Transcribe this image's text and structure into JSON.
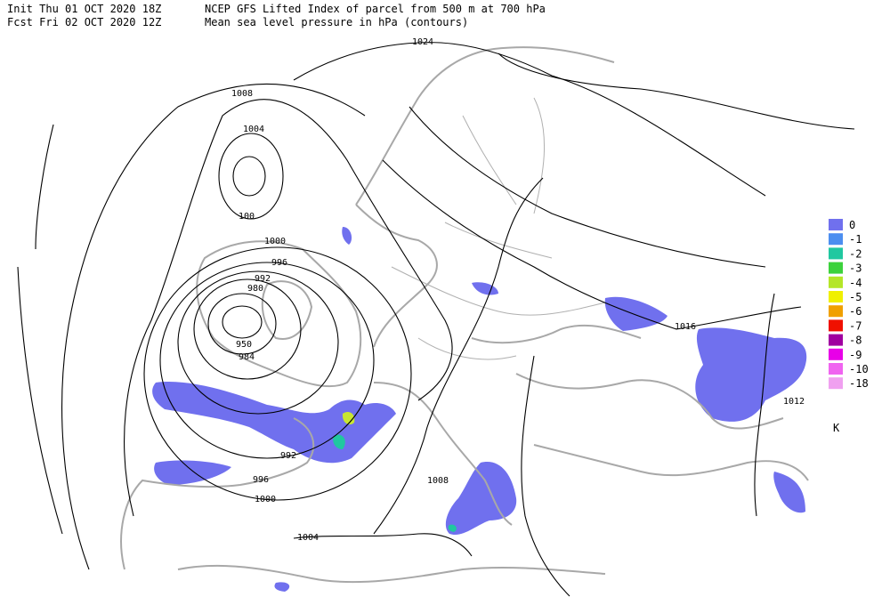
{
  "header": {
    "init": "Init  Thu 01 OCT 2020 18Z",
    "forecast": "Fcst Fri 02 OCT 2020 12Z",
    "field": "NCEP GFS Lifted Index of parcel from 500 m at 700 hPa",
    "contours": "Mean sea level pressure in hPa (contours)"
  },
  "contour_labels": [
    "1024",
    "1008",
    "1004",
    "100",
    "1000",
    "996",
    "992",
    "980",
    "950",
    "984",
    "992",
    "996",
    "1000",
    "1004",
    "1008",
    "1016",
    "1012"
  ],
  "legend": {
    "unit": "K",
    "items": [
      {
        "label": "0",
        "color": "#7070ee"
      },
      {
        "label": "-1",
        "color": "#4c8ef0"
      },
      {
        "label": "-2",
        "color": "#20c8a0"
      },
      {
        "label": "-3",
        "color": "#3cd23c"
      },
      {
        "label": "-4",
        "color": "#b4e628"
      },
      {
        "label": "-5",
        "color": "#f0f000"
      },
      {
        "label": "-6",
        "color": "#f0a000"
      },
      {
        "label": "-7",
        "color": "#f01000"
      },
      {
        "label": "-8",
        "color": "#a000a0"
      },
      {
        "label": "-9",
        "color": "#e800e8"
      },
      {
        "label": "-10",
        "color": "#f064f0"
      },
      {
        "label": "-18",
        "color": "#f0a0f0"
      }
    ]
  }
}
